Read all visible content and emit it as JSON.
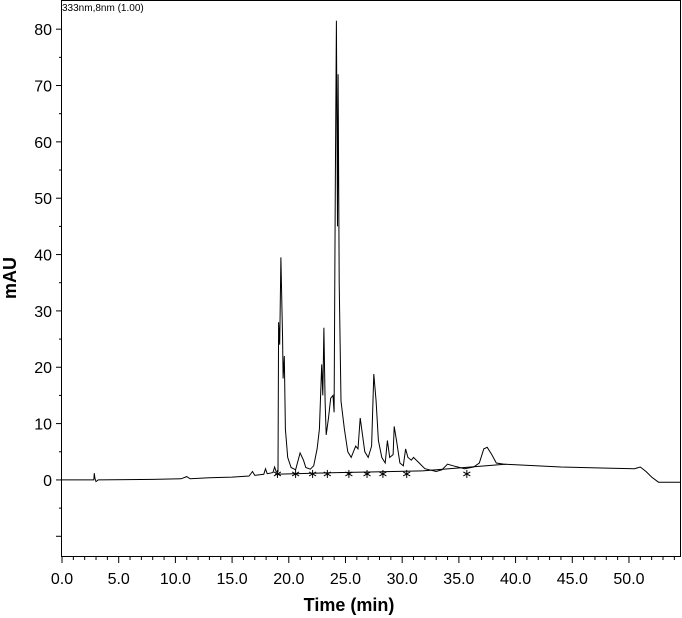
{
  "chart_data": {
    "type": "line",
    "header": "333nm,8nm (1.00)",
    "xlabel": "Time (min)",
    "ylabel": "mAU",
    "xlim": [
      0,
      54.5
    ],
    "ylim": [
      -13.5,
      85
    ],
    "x_ticks": [
      0,
      5,
      10,
      15,
      20,
      25,
      30,
      35,
      40,
      45,
      50
    ],
    "x_tick_labels": [
      "0.0",
      "5.0",
      "10.0",
      "15.0",
      "20.0",
      "25.0",
      "30.0",
      "35.0",
      "40.0",
      "45.0",
      "50.0"
    ],
    "y_ticks": [
      0,
      10,
      20,
      30,
      40,
      50,
      60,
      70,
      80
    ],
    "y_tick_labels": [
      "0",
      "10",
      "20",
      "30",
      "40",
      "50",
      "60",
      "70",
      "80"
    ],
    "grid": false,
    "series": [
      {
        "color": "#000000",
        "points": [
          [
            0,
            0
          ],
          [
            2.8,
            0
          ],
          [
            2.85,
            1.2
          ],
          [
            2.9,
            0.3
          ],
          [
            3.0,
            -0.3
          ],
          [
            3.2,
            0
          ],
          [
            8,
            0.1
          ],
          [
            10.5,
            0.2
          ],
          [
            11.0,
            0.6
          ],
          [
            11.3,
            0.2
          ],
          [
            13,
            0.4
          ],
          [
            15,
            0.5
          ],
          [
            16.5,
            0.7
          ],
          [
            16.8,
            1.5
          ],
          [
            17.0,
            0.8
          ],
          [
            17.8,
            1.0
          ],
          [
            17.95,
            2.0
          ],
          [
            18.1,
            1.1
          ],
          [
            18.6,
            1.3
          ],
          [
            18.75,
            2.3
          ],
          [
            18.9,
            1.4
          ],
          [
            19.05,
            1.5
          ],
          [
            19.1,
            28
          ],
          [
            19.2,
            24
          ],
          [
            19.3,
            39.5
          ],
          [
            19.4,
            30
          ],
          [
            19.45,
            25
          ],
          [
            19.5,
            18
          ],
          [
            19.6,
            22
          ],
          [
            19.7,
            9
          ],
          [
            19.9,
            4
          ],
          [
            20.2,
            2.2
          ],
          [
            20.6,
            1.8
          ],
          [
            21.0,
            4.8
          ],
          [
            21.3,
            3.5
          ],
          [
            21.5,
            2.2
          ],
          [
            21.9,
            1.9
          ],
          [
            22.2,
            2.5
          ],
          [
            22.5,
            5.5
          ],
          [
            22.7,
            9
          ],
          [
            22.9,
            20.5
          ],
          [
            23.0,
            15
          ],
          [
            23.1,
            27
          ],
          [
            23.2,
            14
          ],
          [
            23.3,
            8
          ],
          [
            23.5,
            11
          ],
          [
            23.7,
            14.5
          ],
          [
            23.9,
            15
          ],
          [
            24.0,
            12
          ],
          [
            24.1,
            52
          ],
          [
            24.2,
            81.5
          ],
          [
            24.3,
            45
          ],
          [
            24.35,
            72
          ],
          [
            24.45,
            35
          ],
          [
            24.6,
            14
          ],
          [
            24.9,
            9
          ],
          [
            25.2,
            5
          ],
          [
            25.5,
            4
          ],
          [
            25.9,
            6
          ],
          [
            26.1,
            5.5
          ],
          [
            26.3,
            11
          ],
          [
            26.5,
            8
          ],
          [
            26.7,
            5
          ],
          [
            27.0,
            4
          ],
          [
            27.3,
            6
          ],
          [
            27.5,
            18.8
          ],
          [
            27.7,
            14
          ],
          [
            27.9,
            7
          ],
          [
            28.2,
            4
          ],
          [
            28.5,
            3
          ],
          [
            28.7,
            7
          ],
          [
            28.9,
            4
          ],
          [
            29.2,
            4.5
          ],
          [
            29.3,
            9.5
          ],
          [
            29.5,
            7
          ],
          [
            29.8,
            3
          ],
          [
            30.1,
            2.5
          ],
          [
            30.3,
            5.5
          ],
          [
            30.5,
            4
          ],
          [
            30.8,
            3.5
          ],
          [
            31.0,
            4
          ],
          [
            31.5,
            3
          ],
          [
            32.0,
            2
          ],
          [
            33.0,
            1.5
          ],
          [
            33.5,
            1.8
          ],
          [
            34.0,
            2.8
          ],
          [
            34.5,
            2.5
          ],
          [
            35.5,
            2
          ],
          [
            36.3,
            2.3
          ],
          [
            36.8,
            3
          ],
          [
            37.2,
            5.5
          ],
          [
            37.5,
            5.8
          ],
          [
            37.9,
            4.5
          ],
          [
            38.3,
            3
          ],
          [
            39.0,
            2.8
          ],
          [
            40,
            2.7
          ],
          [
            44,
            2.3
          ],
          [
            48,
            2.1
          ],
          [
            50.5,
            2.0
          ],
          [
            51.0,
            2.3
          ],
          [
            51.5,
            1.5
          ],
          [
            52.0,
            0.5
          ],
          [
            52.6,
            -0.4
          ],
          [
            54.5,
            -0.4
          ]
        ]
      }
    ],
    "baseline_segments": [
      [
        [
          18.8,
          1.0
        ],
        [
          24.2,
          1.3
        ]
      ],
      [
        [
          24.2,
          1.3
        ],
        [
          31.8,
          1.6
        ]
      ],
      [
        [
          31.8,
          1.6
        ],
        [
          39.2,
          2.8
        ]
      ]
    ],
    "peak_markers_x": [
      19.0,
      20.6,
      22.1,
      23.4,
      25.3,
      26.9,
      28.3,
      30.4,
      35.7
    ]
  }
}
